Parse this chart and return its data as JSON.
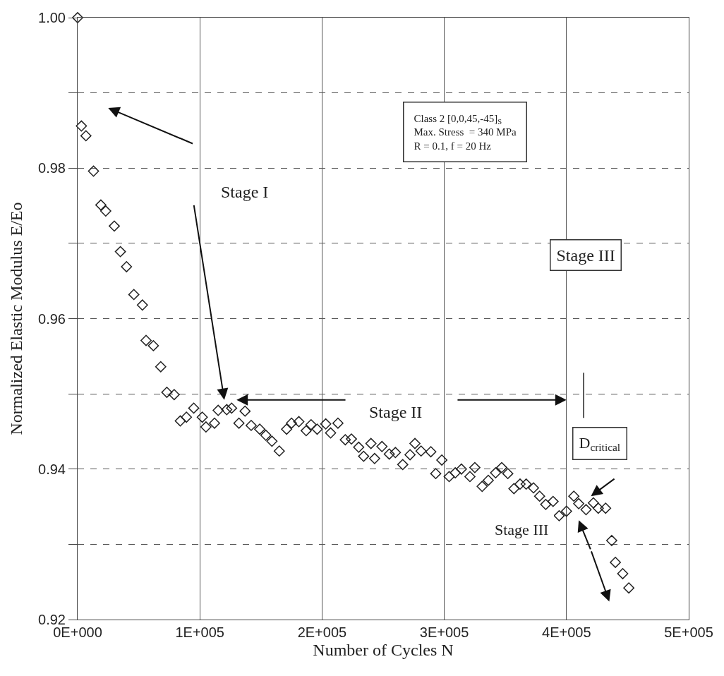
{
  "chart_data": {
    "type": "scatter",
    "xlabel": "Number of Cycles N",
    "ylabel": "Normalized Elastic Modulus E/Eo",
    "x": [
      0,
      3100,
      6800,
      13000,
      19000,
      23000,
      30000,
      35000,
      40000,
      46000,
      53000,
      56000,
      62000,
      68000,
      73000,
      79000,
      84000,
      89000,
      95000,
      102000,
      105000,
      112000,
      115000,
      122000,
      126000,
      132000,
      137000,
      142000,
      149000,
      154000,
      159000,
      165000,
      171000,
      175000,
      181000,
      187000,
      191000,
      196000,
      203000,
      207000,
      213000,
      219000,
      224000,
      230000,
      234000,
      240000,
      243000,
      249000,
      255000,
      260000,
      266000,
      272000,
      276000,
      281000,
      289000,
      293000,
      298000,
      304000,
      309000,
      314000,
      321000,
      325000,
      331000,
      336000,
      342000,
      347000,
      352000,
      357000,
      362000,
      367000,
      373000,
      378000,
      383000,
      389000,
      394000,
      400000,
      406000,
      410000,
      416000,
      422000,
      426000,
      432000,
      437000,
      440000,
      446000,
      451000
    ],
    "values": [
      1.0,
      0.9856,
      0.9843,
      0.9796,
      0.9751,
      0.9743,
      0.9723,
      0.9689,
      0.9669,
      0.9632,
      0.9618,
      0.9571,
      0.9564,
      0.9536,
      0.9502,
      0.9499,
      0.9464,
      0.9469,
      0.9481,
      0.9469,
      0.9456,
      0.9461,
      0.9478,
      0.9479,
      0.9481,
      0.9461,
      0.9477,
      0.9458,
      0.9453,
      0.9445,
      0.9437,
      0.9424,
      0.9453,
      0.9461,
      0.9463,
      0.9451,
      0.9459,
      0.9453,
      0.946,
      0.9448,
      0.9461,
      0.9439,
      0.944,
      0.9429,
      0.9417,
      0.9434,
      0.9414,
      0.943,
      0.942,
      0.9422,
      0.9406,
      0.9419,
      0.9434,
      0.9424,
      0.9423,
      0.9394,
      0.9412,
      0.939,
      0.9395,
      0.94,
      0.939,
      0.9402,
      0.9377,
      0.9385,
      0.9395,
      0.9402,
      0.9394,
      0.9374,
      0.938,
      0.938,
      0.9375,
      0.9364,
      0.9353,
      0.9357,
      0.9338,
      0.9344,
      0.9364,
      0.9354,
      0.9346,
      0.9355,
      0.9348,
      0.9348,
      0.9305,
      0.9276,
      0.9261,
      0.9242
    ],
    "color": "#222222",
    "marker": "diamond",
    "xlim": [
      0,
      500000
    ],
    "xticks": [
      {
        "value": 0,
        "label": "0E+000"
      },
      {
        "value": 100000,
        "label": "1E+005"
      },
      {
        "value": 200000,
        "label": "2E+005"
      },
      {
        "value": 300000,
        "label": "3E+005"
      },
      {
        "value": 400000,
        "label": "4E+005"
      },
      {
        "value": 500000,
        "label": "5E+005"
      }
    ],
    "ylim": [
      0.92,
      1.0
    ],
    "yticks": [
      0.92,
      {
        "value": 0.93,
        "label": null
      },
      0.94,
      {
        "value": 0.95,
        "label": null
      },
      0.96,
      {
        "value": 0.97,
        "label": null
      },
      0.98,
      {
        "value": 0.99,
        "label": null
      },
      {
        "value": 1.0,
        "label": "1.00"
      }
    ],
    "grid": true,
    "annotations": [
      "Stage I",
      "Stage II",
      "Stage III",
      "Class 2 [0,0,45,-45]$_{S}$\nMax. Stress  = 340 MPa\nR = 0.1, f = 20 Hz",
      "D$_{critical}$",
      "Stage III"
    ]
  }
}
